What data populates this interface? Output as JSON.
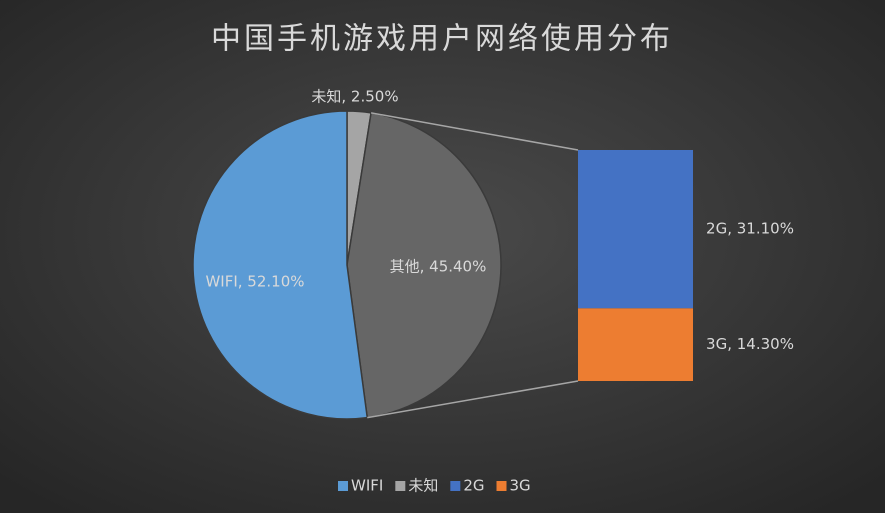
{
  "chart_data": {
    "type": "pie-of-bar",
    "title": "中国手机游戏用户网络使用分布",
    "categories": [
      "WIFI",
      "未知",
      "其他"
    ],
    "values": [
      52.1,
      2.5,
      45.4
    ],
    "value_labels": [
      "WIFI, 52.10%",
      "未知, 2.50%",
      "其他, 45.40%"
    ],
    "colors": [
      "#5b9bd5",
      "#a5a5a5",
      "#666666"
    ],
    "bar": {
      "categories": [
        "2G",
        "3G"
      ],
      "values": [
        31.1,
        14.3
      ],
      "value_labels": [
        "2G, 31.10%",
        "3G, 14.30%"
      ],
      "colors": [
        "#4472c4",
        "#ed7d31"
      ]
    },
    "legend": "bottom"
  }
}
